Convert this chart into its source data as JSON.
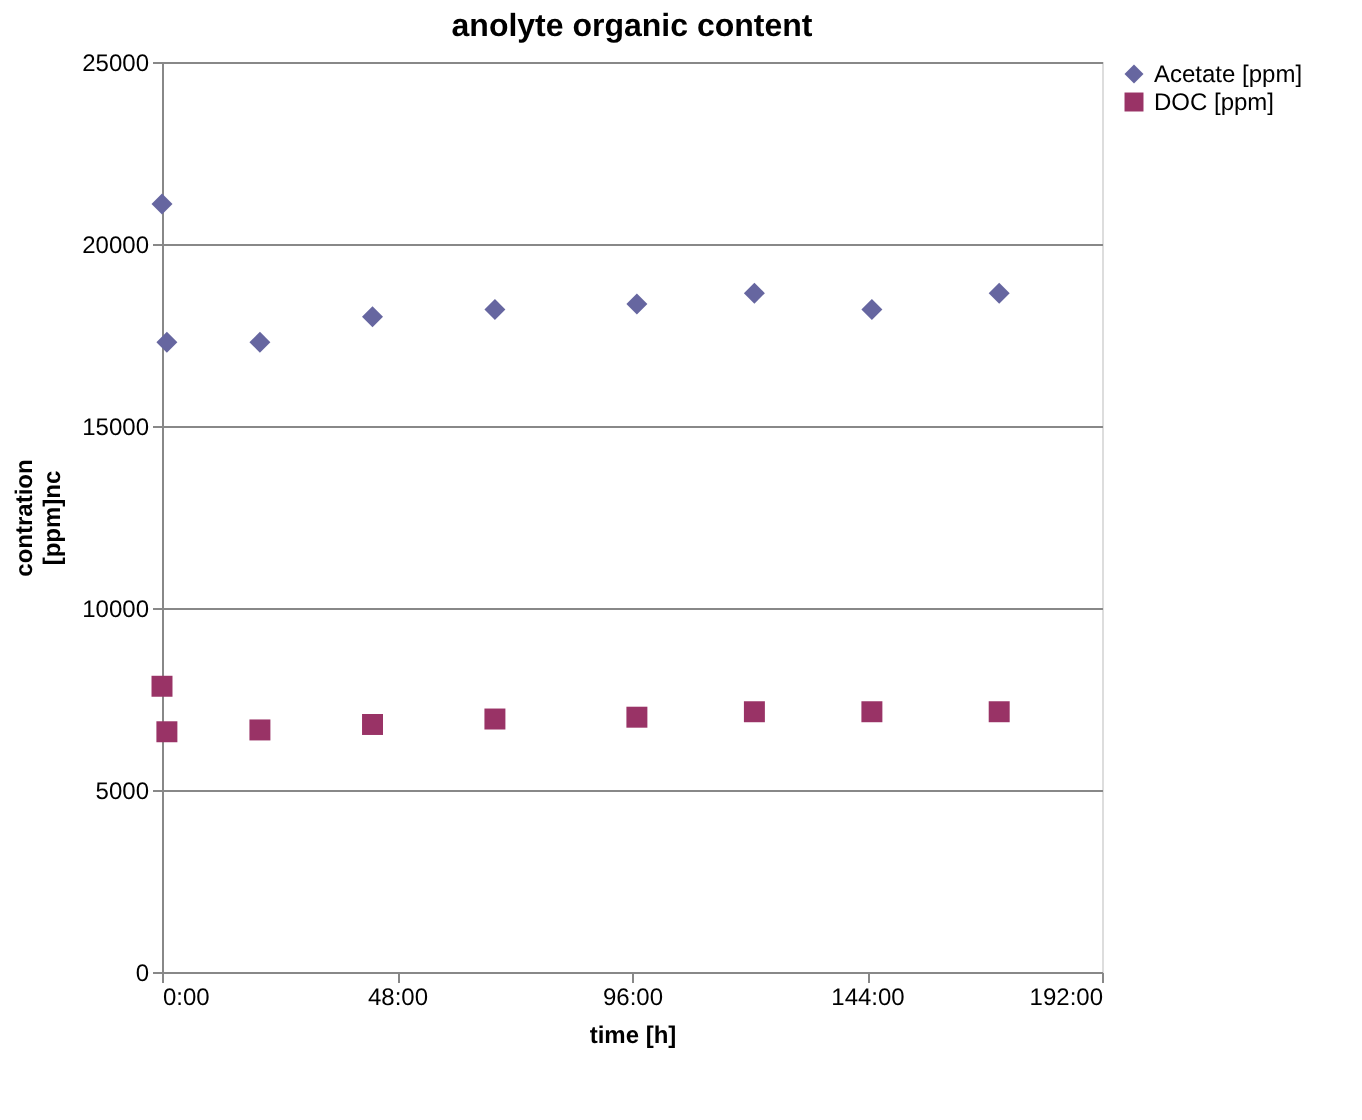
{
  "chart_data": {
    "type": "scatter",
    "title": "anolyte organic content",
    "xlabel": "time [h]",
    "ylabel": "contration\n[ppm]nc",
    "series": [
      {
        "name": "Acetate [ppm]",
        "color": "#6666a0",
        "marker": "diamond",
        "x": [
          0,
          1,
          20,
          43,
          68,
          97,
          121,
          145,
          171
        ],
        "values": [
          21100,
          17300,
          17300,
          18000,
          18200,
          18350,
          18650,
          18200,
          18650
        ]
      },
      {
        "name": "DOC [ppm]",
        "color": "#993366",
        "marker": "square",
        "x": [
          0,
          1,
          20,
          43,
          68,
          97,
          121,
          145,
          171
        ],
        "values": [
          7850,
          6600,
          6650,
          6800,
          6950,
          7000,
          7150,
          7150,
          7150
        ]
      }
    ],
    "xlim": [
      0,
      192
    ],
    "xticks": [
      {
        "value": 0,
        "label": "0:00"
      },
      {
        "value": 48,
        "label": "48:00"
      },
      {
        "value": 96,
        "label": "96:00"
      },
      {
        "value": 144,
        "label": "144:00"
      },
      {
        "value": 192,
        "label": "192:00"
      }
    ],
    "ylim": [
      0,
      25000
    ],
    "yticks": [
      0,
      5000,
      10000,
      15000,
      20000,
      25000
    ],
    "grid": "y",
    "legend": "right"
  }
}
